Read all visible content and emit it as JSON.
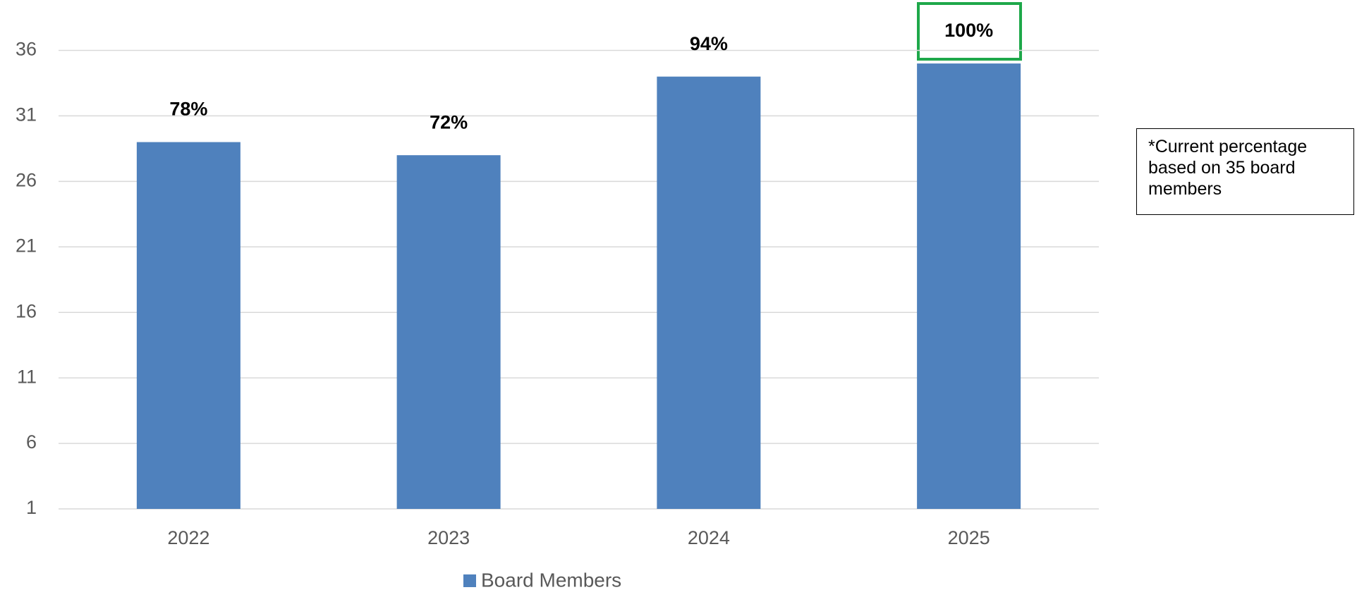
{
  "chart_data": {
    "type": "bar",
    "categories": [
      "2022",
      "2023",
      "2024",
      "2025"
    ],
    "series": [
      {
        "name": "Board Members",
        "color": "#4f81bd",
        "values": [
          29,
          28,
          34,
          35
        ]
      }
    ],
    "data_labels": [
      "78%",
      "72%",
      "94%",
      "100%"
    ],
    "ylim": [
      1,
      36
    ],
    "yticks": [
      1,
      6,
      11,
      16,
      21,
      26,
      31,
      36
    ],
    "grid": true,
    "legend": "bottom",
    "note": "*Current percentage based on 35 board members"
  }
}
